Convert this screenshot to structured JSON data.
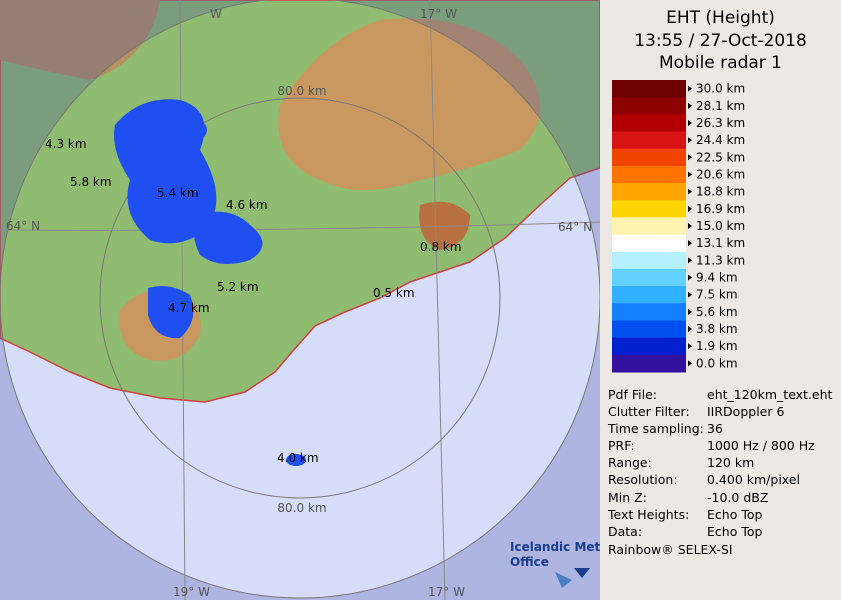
{
  "header": {
    "title": "EHT (Height)",
    "time": "13:55 / 27-Oct-2018",
    "radar": "Mobile radar 1"
  },
  "legend": [
    {
      "label": "30.0 km",
      "color": "#6e0000"
    },
    {
      "label": "28.1 km",
      "color": "#8c0000"
    },
    {
      "label": "26.3 km",
      "color": "#b20000"
    },
    {
      "label": "24.4 km",
      "color": "#d81414"
    },
    {
      "label": "22.5 km",
      "color": "#f04400"
    },
    {
      "label": "20.6 km",
      "color": "#ff7400"
    },
    {
      "label": "18.8 km",
      "color": "#ffa400"
    },
    {
      "label": "16.9 km",
      "color": "#ffd400"
    },
    {
      "label": "15.0 km",
      "color": "#fff3b0"
    },
    {
      "label": "13.1 km",
      "color": "#ffffff"
    },
    {
      "label": "11.3 km",
      "color": "#b4f0ff"
    },
    {
      "label": "9.4 km",
      "color": "#64d2ff"
    },
    {
      "label": "7.5 km",
      "color": "#30b0ff"
    },
    {
      "label": "5.6 km",
      "color": "#1480ff"
    },
    {
      "label": "3.8 km",
      "color": "#0050f0"
    },
    {
      "label": "1.9 km",
      "color": "#0020d0"
    },
    {
      "label": "0.0 km",
      "color": "#3412a0"
    }
  ],
  "info": [
    {
      "key": "Pdf File:",
      "value": "eht_120km_text.eht"
    },
    {
      "key": "Clutter Filter:",
      "value": "IIRDoppler 6"
    },
    {
      "key": "Time sampling:",
      "value": "36"
    },
    {
      "key": "PRF:",
      "value": "1000 Hz / 800 Hz"
    },
    {
      "key": "Range:",
      "value": "120 km"
    },
    {
      "key": "Resolution:",
      "value": "0.400 km/pixel"
    },
    {
      "key": "Min Z:",
      "value": "-10.0 dBZ"
    },
    {
      "key": "Text Heights:",
      "value": "Echo Top"
    },
    {
      "key": "Data:",
      "value": "Echo Top"
    }
  ],
  "footer": "Rainbow® SELEX-SI",
  "map": {
    "ring_labels": [
      "80.0 km",
      "80.0 km"
    ],
    "grid_labels": [
      "W",
      "17° W",
      "64° N",
      "64° N",
      "19° W",
      "17° W"
    ],
    "echo_labels": [
      "4.3 km",
      "5.8 km",
      "5.4 km",
      "4.6 km",
      "0.8 km",
      "5.2 km",
      "0.5 km",
      "4.7 km",
      "4.0 km"
    ],
    "logo": [
      "Icelandic Met",
      "Office"
    ]
  }
}
